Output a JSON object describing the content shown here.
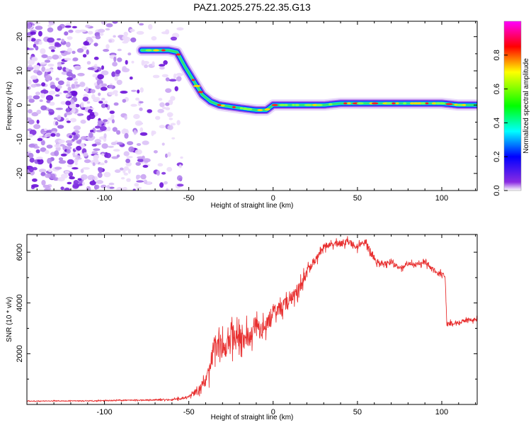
{
  "title": "PAZ1.2025.275.22.35.G13",
  "chart_data": [
    {
      "type": "heatmap",
      "name": "spectrogram",
      "xlabel": "Height of straight line (km)",
      "ylabel": "Frequency (Hz)",
      "xlim": [
        -146,
        121
      ],
      "ylim": [
        -25,
        24.5
      ],
      "xticks": [
        -100,
        -50,
        0,
        50,
        100
      ],
      "yticks": [
        -20,
        -10,
        0,
        10,
        20
      ],
      "colorbar": {
        "label": "Normalized spectral amplitude",
        "range": [
          0,
          1
        ],
        "ticks": [
          0.0,
          0.2,
          0.4,
          0.6,
          0.8
        ],
        "tick_labels": [
          "0.0",
          "0.2",
          "0.4",
          "0.6",
          "0.8"
        ],
        "colormap": [
          "#ffffff",
          "#8a2be2",
          "#0000ff",
          "#00ffff",
          "#00ff00",
          "#ffff00",
          "#ff0000",
          "#ff00ff"
        ]
      },
      "ridge": {
        "x": [
          -78,
          -70,
          -62,
          -57,
          -52,
          -47,
          -42,
          -37,
          -32,
          -25,
          -18,
          -10,
          -4,
          0,
          5,
          10,
          20,
          30,
          40,
          50,
          60,
          70,
          80,
          90,
          100,
          110,
          121
        ],
        "y": [
          16,
          16,
          16,
          15.5,
          11,
          7,
          3,
          1,
          0,
          -0.5,
          -1,
          -1.5,
          -1.5,
          0,
          0,
          0,
          0,
          0,
          0.5,
          0.5,
          0.5,
          0.5,
          0.5,
          0.5,
          0.5,
          0,
          0
        ]
      },
      "noise_region": {
        "x_start": -146,
        "x_end": -58
      }
    },
    {
      "type": "line",
      "name": "snr",
      "xlabel": "Height of straight line (km)",
      "ylabel": "SNR (10 * v/v)",
      "xlim": [
        -146,
        121
      ],
      "ylim": [
        0,
        6700
      ],
      "xticks": [
        -100,
        -50,
        0,
        50,
        100
      ],
      "yticks": [
        2000,
        4000,
        6000
      ],
      "color": "#e83030",
      "series": [
        {
          "name": "SNR",
          "x": [
            -146,
            -120,
            -100,
            -80,
            -60,
            -50,
            -45,
            -40,
            -37,
            -35,
            -30,
            -25,
            -20,
            -15,
            -10,
            -5,
            0,
            5,
            10,
            15,
            20,
            25,
            30,
            35,
            40,
            45,
            50,
            55,
            60,
            65,
            70,
            75,
            80,
            85,
            90,
            95,
            100,
            102,
            103,
            105,
            110,
            115,
            121
          ],
          "y": [
            130,
            140,
            150,
            170,
            190,
            280,
            520,
            900,
            1500,
            2400,
            2200,
            2500,
            2700,
            2650,
            3000,
            2900,
            3700,
            3800,
            4100,
            4500,
            5200,
            5700,
            6200,
            6300,
            6350,
            6400,
            6200,
            6400,
            5700,
            5500,
            5600,
            5350,
            5550,
            5500,
            5600,
            5300,
            5150,
            5050,
            3150,
            3200,
            3250,
            3300,
            3350
          ],
          "noise": [
            20,
            20,
            25,
            25,
            40,
            80,
            150,
            300,
            500,
            700,
            600,
            600,
            550,
            550,
            500,
            450,
            350,
            350,
            300,
            300,
            250,
            200,
            150,
            150,
            150,
            150,
            150,
            150,
            150,
            120,
            120,
            110,
            110,
            110,
            110,
            110,
            100,
            100,
            90,
            90,
            90,
            90,
            90
          ]
        }
      ]
    }
  ]
}
